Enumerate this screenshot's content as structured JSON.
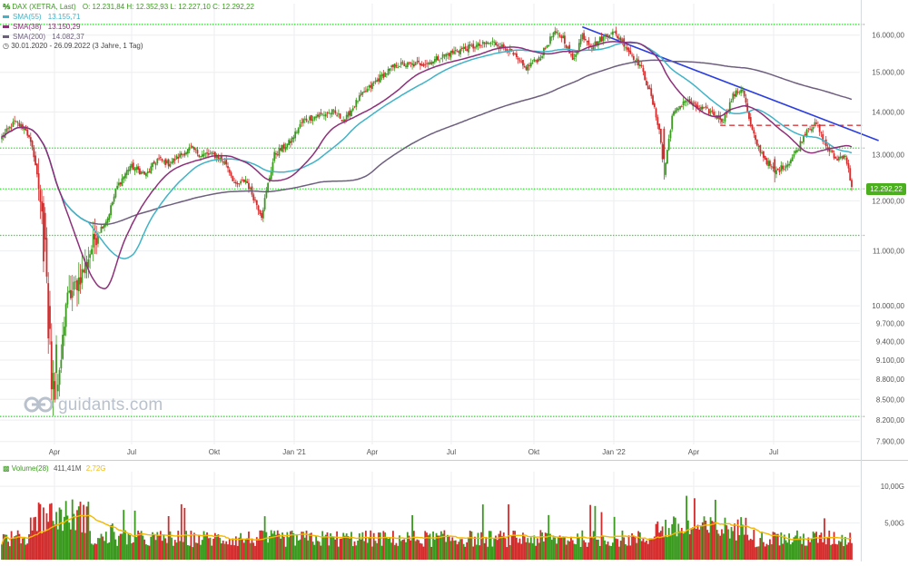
{
  "header": {
    "instrument": "DAX (XETRA, Last)",
    "ohlc": "O: 12.231,84  H: 12.352,93  L: 12.227,10  C: 12.292,22",
    "sma55_label": "SMA(55)",
    "sma55_value": "13.155,71",
    "sma38_label": "SMA(38)",
    "sma38_value": "13.150,29",
    "sma200_label": "SMA(200)",
    "sma200_value": "14.082,37",
    "range": "30.01.2020 - 26.09.2022  (3 Jahre, 1 Tag)"
  },
  "watermark": "guidants.com",
  "last_price_tag": "12.292,22",
  "volume_header": {
    "label": "Volume(28)",
    "value1": "411,41M",
    "value2": "2,72G"
  },
  "colors": {
    "up": "#3a9a1e",
    "down": "#d32c2c",
    "sma55": "#3fb3c8",
    "sma38": "#8e2f7a",
    "sma200": "#6e5f7e",
    "trendline": "#2b3ee0",
    "resistance_dashed": "#d83a3a",
    "support_dotted": "#2ee62e",
    "volume_ma": "#f3b900",
    "last_tag": "#4caf1e"
  },
  "chart_data": {
    "type": "candlestick",
    "scale": "log",
    "x_range": [
      "30.01.2020",
      "26.09.2022"
    ],
    "x_tick_labels": [
      "Apr",
      "Jul",
      "Okt",
      "Jan '21",
      "Apr",
      "Jul",
      "Okt",
      "Jan '22",
      "Apr",
      "Jul"
    ],
    "y_tick_labels": [
      "7.900,00",
      "8.200,00",
      "8.500,00",
      "8.800,00",
      "9.100,00",
      "9.400,00",
      "9.700,00",
      "10.000,00",
      "11.000,00",
      "12.000,00",
      "13.000,00",
      "14.000,00",
      "15.000,00",
      "16.000,00"
    ],
    "y_ticks": [
      7900,
      8200,
      8500,
      8800,
      9100,
      9400,
      9700,
      10000,
      11000,
      12000,
      13000,
      14000,
      15000,
      16000
    ],
    "ylim": [
      7700,
      16900
    ],
    "price_anchors": [
      [
        0,
        13400
      ],
      [
        8,
        13750
      ],
      [
        15,
        13600
      ],
      [
        20,
        13000
      ],
      [
        26,
        11600
      ],
      [
        30,
        9500
      ],
      [
        33,
        8550
      ],
      [
        36,
        8800
      ],
      [
        40,
        10050
      ],
      [
        45,
        10300
      ],
      [
        52,
        10700
      ],
      [
        58,
        11250
      ],
      [
        66,
        11650
      ],
      [
        72,
        12300
      ],
      [
        80,
        12750
      ],
      [
        90,
        12550
      ],
      [
        97,
        12900
      ],
      [
        104,
        12800
      ],
      [
        110,
        12950
      ],
      [
        118,
        13150
      ],
      [
        124,
        13000
      ],
      [
        132,
        13000
      ],
      [
        140,
        12800
      ],
      [
        146,
        12300
      ],
      [
        152,
        12450
      ],
      [
        162,
        11700
      ],
      [
        170,
        13000
      ],
      [
        180,
        13300
      ],
      [
        188,
        13800
      ],
      [
        196,
        13900
      ],
      [
        206,
        14000
      ],
      [
        214,
        13800
      ],
      [
        222,
        14300
      ],
      [
        234,
        14800
      ],
      [
        246,
        15200
      ],
      [
        256,
        15200
      ],
      [
        266,
        15250
      ],
      [
        276,
        15450
      ],
      [
        286,
        15600
      ],
      [
        296,
        15700
      ],
      [
        306,
        15800
      ],
      [
        316,
        15600
      ],
      [
        326,
        15100
      ],
      [
        336,
        15400
      ],
      [
        344,
        16050
      ],
      [
        350,
        15950
      ],
      [
        356,
        15300
      ],
      [
        362,
        16000
      ],
      [
        368,
        15700
      ],
      [
        374,
        15900
      ],
      [
        380,
        16100
      ],
      [
        386,
        15900
      ],
      [
        392,
        15500
      ],
      [
        398,
        15200
      ],
      [
        404,
        14500
      ],
      [
        410,
        13600
      ],
      [
        413,
        12550
      ],
      [
        418,
        13900
      ],
      [
        426,
        14300
      ],
      [
        434,
        14100
      ],
      [
        442,
        14000
      ],
      [
        450,
        13800
      ],
      [
        456,
        14400
      ],
      [
        462,
        14600
      ],
      [
        466,
        13800
      ],
      [
        470,
        13300
      ],
      [
        476,
        12900
      ],
      [
        482,
        12600
      ],
      [
        490,
        12800
      ],
      [
        496,
        13100
      ],
      [
        502,
        13600
      ],
      [
        508,
        13700
      ],
      [
        514,
        13200
      ],
      [
        520,
        12900
      ],
      [
        526,
        13000
      ],
      [
        530,
        12292
      ]
    ],
    "highlighted_candles": [
      {
        "i": 26,
        "o": 11950,
        "h": 12100,
        "l": 10600,
        "c": 10800
      },
      {
        "i": 29,
        "o": 10400,
        "h": 10600,
        "l": 9200,
        "c": 9450
      },
      {
        "i": 31,
        "o": 9400,
        "h": 9700,
        "l": 8450,
        "c": 8650
      },
      {
        "i": 32,
        "o": 8650,
        "h": 9100,
        "l": 8260,
        "c": 8900
      },
      {
        "i": 34,
        "o": 8900,
        "h": 9500,
        "l": 8500,
        "c": 9350
      },
      {
        "i": 413,
        "o": 13600,
        "h": 13650,
        "l": 12450,
        "c": 12900
      },
      {
        "i": 482,
        "o": 12900,
        "h": 12960,
        "l": 12390,
        "c": 12600
      }
    ],
    "levels": {
      "support_dotted": [
        16300,
        13150,
        12250,
        11300,
        8250
      ],
      "resistance_dashed": 13680,
      "trendline": {
        "from_i": 362,
        "from": 16230,
        "to_i": 540,
        "to": 13450
      }
    },
    "sma_last": {
      "SMA(55)": 13155.71,
      "SMA(38)": 13150.29,
      "SMA(200)": 14082.37
    },
    "last_close": 12292.22,
    "volume": {
      "y_tick_labels": [
        "5,00G",
        "10,00G"
      ],
      "y_ticks": [
        5,
        10
      ],
      "ylim": [
        0,
        12
      ],
      "unit": "G"
    }
  }
}
